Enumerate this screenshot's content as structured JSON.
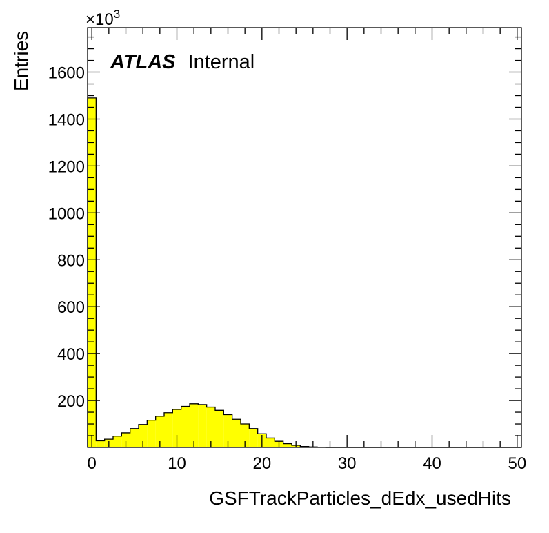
{
  "chart_data": {
    "type": "bar",
    "title": "",
    "xlabel": "GSFTrackParticles_dEdx_usedHits",
    "ylabel": "Entries",
    "y_multiplier_label": "×10",
    "y_multiplier_exponent": "3",
    "xlim": [
      -0.5,
      50.5
    ],
    "ylim": [
      0,
      1790
    ],
    "x_ticks": [
      0,
      10,
      20,
      30,
      40,
      50
    ],
    "x_tick_labels": [
      "0",
      "10",
      "20",
      "30",
      "40",
      "50"
    ],
    "y_ticks": [
      200,
      400,
      600,
      800,
      1000,
      1200,
      1400,
      1600
    ],
    "y_tick_labels": [
      "200",
      "400",
      "600",
      "800",
      "1000",
      "1200",
      "1400",
      "1600"
    ],
    "bin_edges_start": -0.5,
    "bin_width": 1,
    "values": [
      1490,
      28,
      35,
      48,
      62,
      80,
      98,
      116,
      133,
      148,
      162,
      175,
      186,
      183,
      172,
      158,
      140,
      120,
      100,
      80,
      58,
      40,
      26,
      16,
      9,
      4,
      2,
      1,
      0,
      0,
      0,
      0,
      0,
      0,
      0,
      0,
      0,
      0,
      0,
      0,
      0,
      0,
      0,
      0,
      0,
      0,
      0,
      0,
      0,
      0,
      0
    ],
    "fill_color": "#ffff00",
    "line_color": "#000000",
    "grid": false,
    "legend": "none"
  },
  "label": {
    "experiment": "ATLAS",
    "status": "Internal"
  }
}
